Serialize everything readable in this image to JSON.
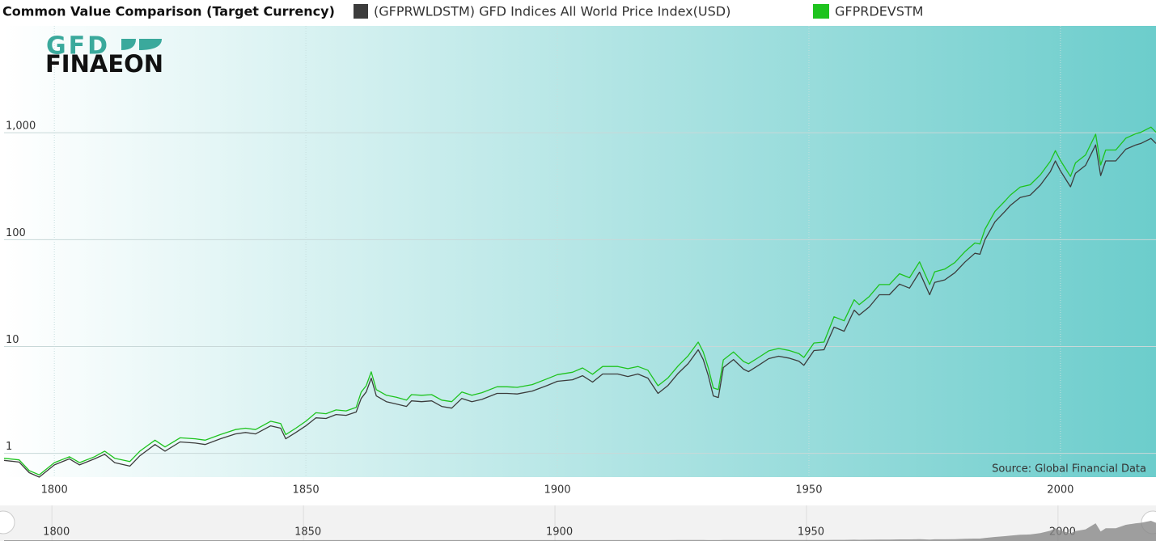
{
  "chart_data": {
    "type": "line",
    "title": "Common Value Comparison (Target Currency)",
    "annotation": "Source: Global Financial Data",
    "logo_top": "GFD",
    "logo_bottom": "FINAEON",
    "log_y": true,
    "grid": true,
    "x": [
      1790,
      1793,
      1795,
      1797,
      1800,
      1803,
      1805,
      1808,
      1810,
      1812,
      1815,
      1817,
      1820,
      1822,
      1825,
      1828,
      1830,
      1833,
      1836,
      1838,
      1840,
      1843,
      1845,
      1846,
      1848,
      1850,
      1852,
      1854,
      1856,
      1858,
      1860,
      1861,
      1862,
      1863,
      1864,
      1866,
      1868,
      1870,
      1871,
      1873,
      1875,
      1877,
      1879,
      1881,
      1883,
      1885,
      1888,
      1890,
      1892,
      1895,
      1898,
      1900,
      1903,
      1905,
      1907,
      1909,
      1912,
      1914,
      1916,
      1918,
      1920,
      1922,
      1924,
      1926,
      1928,
      1929,
      1930,
      1931,
      1932,
      1933,
      1935,
      1937,
      1938,
      1940,
      1942,
      1944,
      1946,
      1948,
      1949,
      1951,
      1953,
      1955,
      1957,
      1959,
      1960,
      1962,
      1964,
      1966,
      1968,
      1970,
      1972,
      1974,
      1975,
      1977,
      1979,
      1981,
      1983,
      1984,
      1985,
      1987,
      1989,
      1990,
      1992,
      1994,
      1996,
      1998,
      1999,
      2000,
      2002,
      2003,
      2005,
      2007,
      2008,
      2009,
      2011,
      2013,
      2015,
      2016,
      2018,
      2019
    ],
    "series": [
      {
        "name": "(GFPRWLDSTM) GFD Indices All World Price Index(USD)",
        "color": "#3c3c3c",
        "values": [
          0.86,
          0.83,
          0.66,
          0.6,
          0.78,
          0.89,
          0.78,
          0.89,
          0.98,
          0.82,
          0.76,
          0.95,
          1.21,
          1.05,
          1.28,
          1.25,
          1.21,
          1.37,
          1.52,
          1.57,
          1.52,
          1.81,
          1.72,
          1.37,
          1.57,
          1.81,
          2.15,
          2.12,
          2.31,
          2.27,
          2.44,
          3.27,
          3.76,
          5.06,
          3.45,
          3.05,
          2.9,
          2.75,
          3.1,
          3.05,
          3.1,
          2.75,
          2.65,
          3.27,
          3.05,
          3.2,
          3.64,
          3.64,
          3.6,
          3.83,
          4.33,
          4.73,
          4.89,
          5.33,
          4.65,
          5.53,
          5.53,
          5.24,
          5.53,
          5.06,
          3.64,
          4.33,
          5.62,
          6.93,
          9.33,
          7.56,
          5.33,
          3.45,
          3.33,
          6.36,
          7.56,
          6.14,
          5.82,
          6.68,
          7.7,
          8.12,
          7.8,
          7.3,
          6.68,
          9.17,
          9.33,
          15.2,
          13.9,
          21.9,
          19.7,
          23.5,
          30.5,
          30.5,
          38.4,
          35.2,
          49.7,
          30.5,
          39.8,
          42,
          49,
          61.5,
          74.5,
          73,
          100,
          147,
          184,
          208,
          248,
          261,
          323,
          433,
          545,
          440,
          312,
          418,
          495,
          769,
          397,
          545,
          545,
          702,
          769,
          794,
          885,
          794
        ]
      },
      {
        "name": "GFPRDEVSTM",
        "color": "#1ec31e",
        "values": [
          0.9,
          0.87,
          0.69,
          0.63,
          0.82,
          0.93,
          0.82,
          0.93,
          1.05,
          0.9,
          0.84,
          1.05,
          1.33,
          1.15,
          1.4,
          1.37,
          1.33,
          1.5,
          1.67,
          1.72,
          1.67,
          2.0,
          1.9,
          1.5,
          1.72,
          2.0,
          2.4,
          2.35,
          2.55,
          2.5,
          2.7,
          3.75,
          4.3,
          5.8,
          3.95,
          3.5,
          3.35,
          3.15,
          3.55,
          3.5,
          3.55,
          3.15,
          3.05,
          3.75,
          3.5,
          3.7,
          4.2,
          4.2,
          4.15,
          4.4,
          5.0,
          5.45,
          5.75,
          6.3,
          5.5,
          6.5,
          6.5,
          6.2,
          6.5,
          6.0,
          4.3,
          5.1,
          6.6,
          8.2,
          11.0,
          8.9,
          6.3,
          4.1,
          3.95,
          7.5,
          8.9,
          7.25,
          6.9,
          7.9,
          9.1,
          9.6,
          9.2,
          8.6,
          7.9,
          10.8,
          11.0,
          19,
          17.4,
          27.4,
          24.6,
          29.4,
          38,
          38,
          48,
          44,
          62,
          38,
          50,
          53,
          61,
          77,
          93,
          91,
          125,
          184,
          230,
          260,
          310,
          326,
          404,
          541,
          680,
          550,
          390,
          523,
          620,
          970,
          500,
          690,
          690,
          890,
          980,
          1010,
          1130,
          1010
        ]
      }
    ],
    "xlim": [
      1790,
      2019
    ],
    "xticks": [
      1800,
      1850,
      1900,
      1950,
      2000
    ],
    "ylim": [
      0.6,
      10000
    ],
    "yticks": [
      1,
      10,
      100,
      {
        "value": 1000,
        "label": "1,000"
      }
    ]
  }
}
